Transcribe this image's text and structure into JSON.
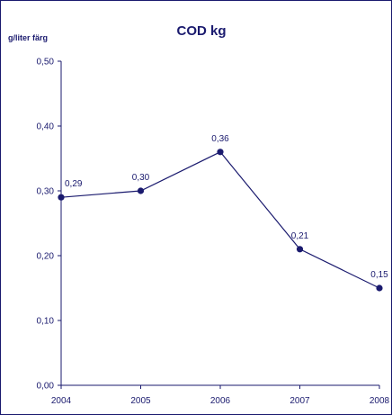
{
  "chart_data": {
    "type": "line",
    "title": "COD kg",
    "ylabel": "g/liter färg",
    "xlabel": "",
    "categories": [
      "2004",
      "2005",
      "2006",
      "2007",
      "2008"
    ],
    "values": [
      0.29,
      0.3,
      0.36,
      0.21,
      0.15
    ],
    "data_labels": [
      "0,29",
      "0,30",
      "0,36",
      "0,21",
      "0,15"
    ],
    "yticks": [
      0.0,
      0.1,
      0.2,
      0.3,
      0.4,
      0.5
    ],
    "ytick_labels": [
      "0,00",
      "0,10",
      "0,20",
      "0,30",
      "0,40",
      "0,50"
    ],
    "ylim": [
      0,
      0.5
    ],
    "grid": false,
    "legend": "none",
    "line_color": "#1a1a6e",
    "marker_color": "#1a1a6e"
  }
}
